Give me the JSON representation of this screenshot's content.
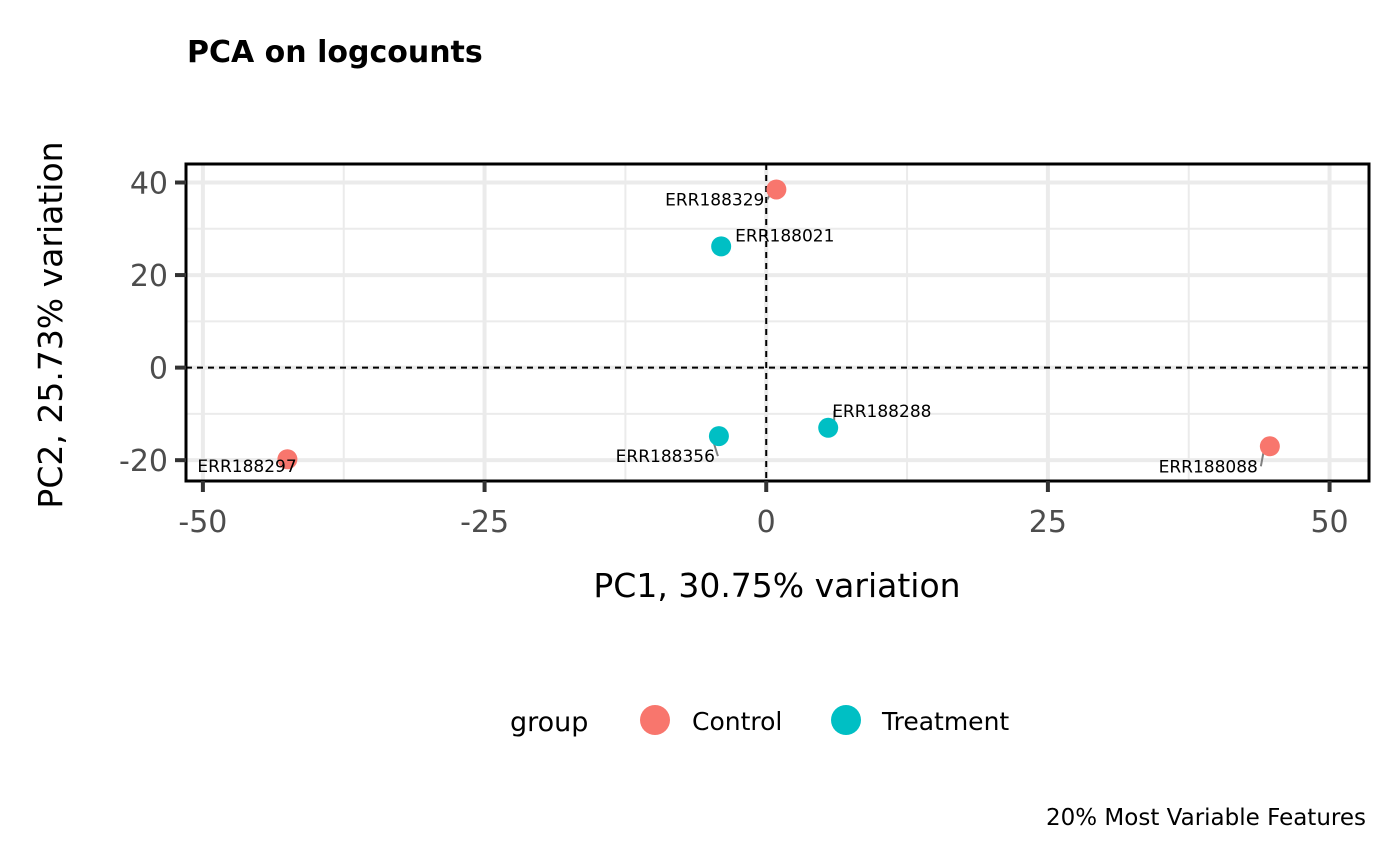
{
  "chart_data": {
    "type": "scatter",
    "title": "PCA on logcounts",
    "xlabel": "PC1, 30.75% variation",
    "ylabel": "PC2, 25.73% variation",
    "xlim": [
      -51.5,
      53.5
    ],
    "ylim": [
      -24.5,
      44
    ],
    "x_ticks": [
      -50,
      -25,
      0,
      25,
      50
    ],
    "x_tick_labels": [
      "-50",
      "-25",
      "0",
      "25",
      "50"
    ],
    "y_ticks": [
      -20,
      0,
      20,
      40
    ],
    "y_tick_labels": [
      "-20",
      "0",
      "20",
      "40"
    ],
    "reference_lines": {
      "x": 0,
      "y": 0,
      "style": "dashed"
    },
    "legend": {
      "title": "group",
      "position": "bottom",
      "entries": [
        {
          "name": "Control",
          "color": "#F8766D"
        },
        {
          "name": "Treatment",
          "color": "#00BFC4"
        }
      ]
    },
    "points": [
      {
        "label": "ERR188329",
        "x": 0.9,
        "y": 38.5,
        "group": "Control"
      },
      {
        "label": "ERR188021",
        "x": -4.0,
        "y": 26.2,
        "group": "Treatment"
      },
      {
        "label": "ERR188288",
        "x": 5.5,
        "y": -13.0,
        "group": "Treatment"
      },
      {
        "label": "ERR188356",
        "x": -4.2,
        "y": -14.8,
        "group": "Treatment"
      },
      {
        "label": "ERR188088",
        "x": 44.7,
        "y": -17.0,
        "group": "Control"
      },
      {
        "label": "ERR188297",
        "x": -42.5,
        "y": -19.8,
        "group": "Control"
      }
    ],
    "caption": "20% Most Variable Features"
  }
}
